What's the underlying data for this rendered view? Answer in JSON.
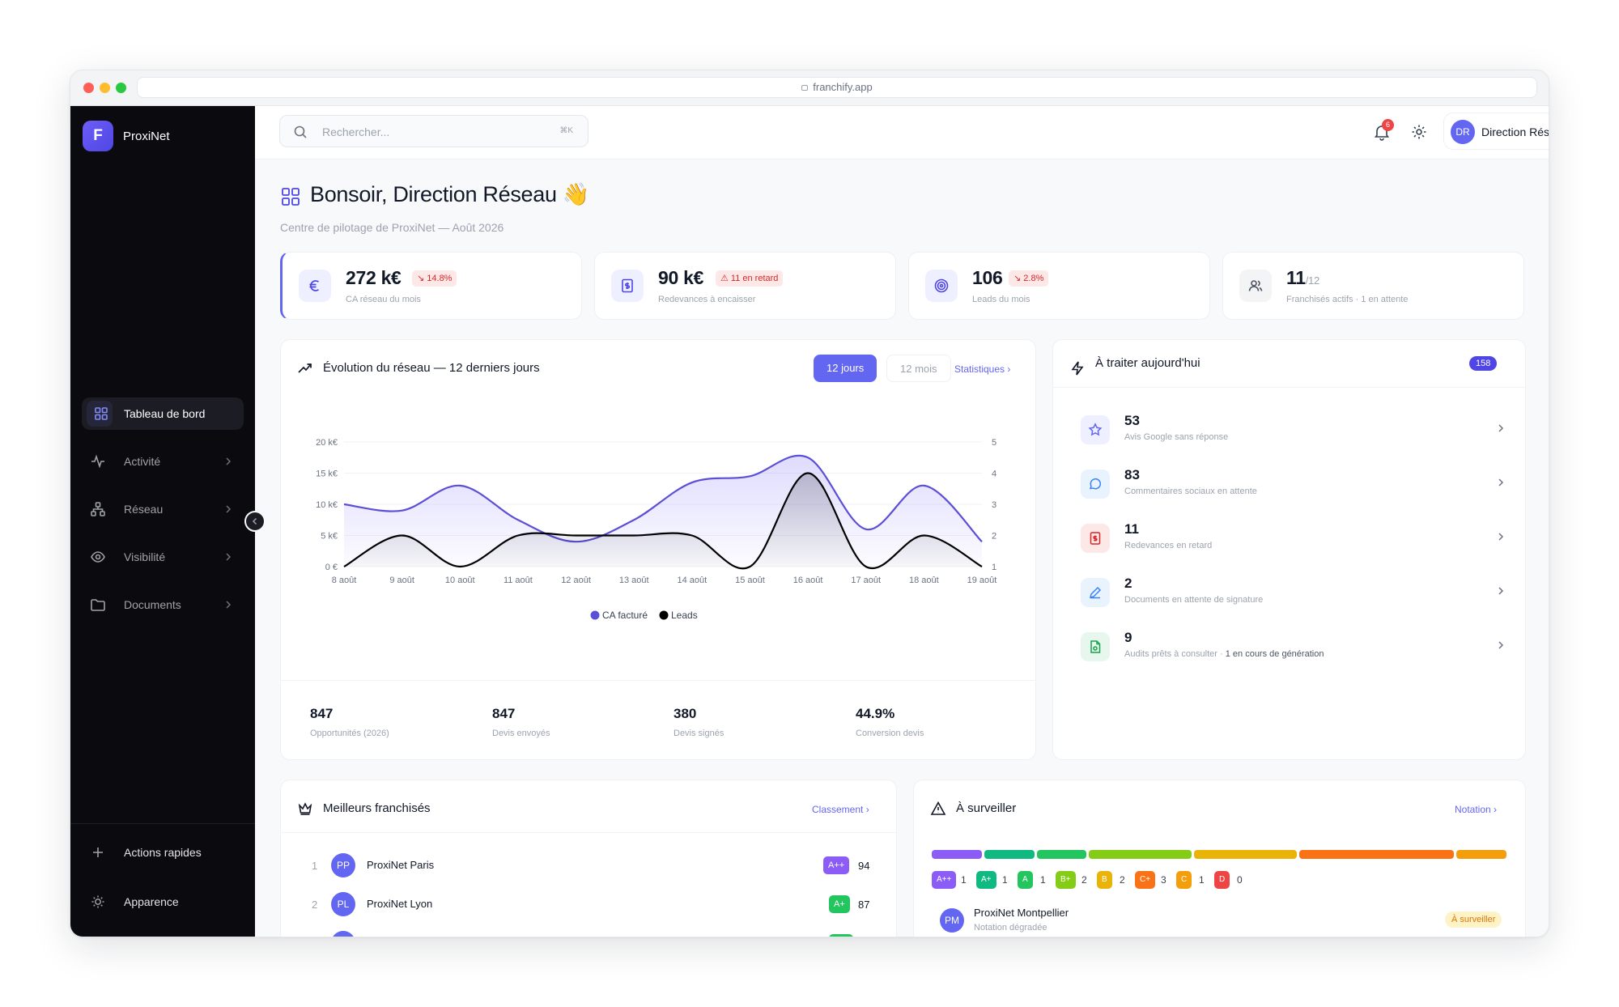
{
  "browser": {
    "url": "franchify.app"
  },
  "sidebar": {
    "brand_letter": "F",
    "brand_name": "ProxiNet",
    "items": [
      {
        "label": "Tableau de bord",
        "icon": "dashboard-icon",
        "active": true
      },
      {
        "label": "Activité",
        "icon": "activity-icon"
      },
      {
        "label": "Réseau",
        "icon": "network-icon"
      },
      {
        "label": "Visibilité",
        "icon": "eye-icon"
      },
      {
        "label": "Documents",
        "icon": "folder-icon"
      }
    ],
    "bottom": [
      {
        "label": "Actions rapides",
        "icon": "plus-icon"
      },
      {
        "label": "Apparence",
        "icon": "sun-icon"
      }
    ]
  },
  "topbar": {
    "search_placeholder": "Rechercher...",
    "search_shortcut": "⌘K",
    "notifications_count": "6",
    "user_initials": "DR",
    "user_name": "Direction Réseau"
  },
  "header": {
    "title": "Bonsoir, Direction Réseau 👋",
    "subtitle": "Centre de pilotage de ProxiNet — Août 2026"
  },
  "kpis": [
    {
      "value": "272 k€",
      "badge": "↘ 14.8%",
      "label": "CA réseau du mois",
      "icon": "euro-icon"
    },
    {
      "value": "90 k€",
      "badge": "⚠ 11 en retard",
      "label": "Redevances à encaisser",
      "icon": "invoice-icon"
    },
    {
      "value": "106",
      "badge": "↘ 2.8%",
      "label": "Leads du mois",
      "icon": "target-icon"
    },
    {
      "value": "11",
      "value_suffix": "/12",
      "label": "Franchisés actifs · 1 en attente",
      "icon": "users-icon"
    }
  ],
  "evolution": {
    "title": "Évolution du réseau — 12 derniers jours",
    "tabs": [
      "12 jours",
      "12 mois"
    ],
    "stats_link": "Statistiques ›",
    "stats": [
      {
        "value": "847",
        "label": "Opportunités (2026)"
      },
      {
        "value": "847",
        "label": "Devis envoyés"
      },
      {
        "value": "380",
        "label": "Devis signés"
      },
      {
        "value": "44.9%",
        "label": "Conversion devis"
      }
    ]
  },
  "chart_data": {
    "type": "area",
    "x": [
      "8 août",
      "9 août",
      "10 août",
      "11 août",
      "12 août",
      "13 août",
      "14 août",
      "15 août",
      "16 août",
      "17 août",
      "18 août",
      "19 août"
    ],
    "series": [
      {
        "name": "CA facturé",
        "axis": "left",
        "color": "#5b4fd6",
        "values": [
          10000,
          9000,
          13000,
          7500,
          4000,
          7500,
          13500,
          14500,
          17500,
          6000,
          13000,
          4000
        ]
      },
      {
        "name": "Leads",
        "axis": "right",
        "color": "#000000",
        "values": [
          1,
          2,
          1,
          2,
          2,
          2,
          2,
          1,
          4,
          1,
          2,
          1
        ]
      }
    ],
    "yleft_ticks": [
      "0 €",
      "5 k€",
      "10 k€",
      "15 k€",
      "20 k€"
    ],
    "yleft_lim": [
      0,
      20000
    ],
    "yright_ticks": [
      "1",
      "2",
      "3",
      "4",
      "5"
    ],
    "yright_lim": [
      1,
      5
    ],
    "legend_position": "bottom",
    "grid": true
  },
  "todo": {
    "title": "À traiter aujourd'hui",
    "total": "158",
    "items": [
      {
        "value": "53",
        "label": "Avis Google sans réponse",
        "icon": "star-icon",
        "bg": "#eef0ff",
        "fg": "#6366f1"
      },
      {
        "value": "83",
        "label": "Commentaires sociaux en attente",
        "icon": "comment-icon",
        "bg": "#e8f3fe",
        "fg": "#3b82f6"
      },
      {
        "value": "11",
        "label": "Redevances en retard",
        "icon": "invoice-icon",
        "bg": "#fde8e8",
        "fg": "#dc2626"
      },
      {
        "value": "2",
        "label": "Documents en attente de signature",
        "icon": "pen-icon",
        "bg": "#e8f3fe",
        "fg": "#3b82f6"
      },
      {
        "value": "9",
        "label": "Audits prêts à consulter · ",
        "label_extra": "1 en cours de génération",
        "icon": "document-icon",
        "bg": "#e7f7ee",
        "fg": "#16a34a"
      }
    ]
  },
  "best": {
    "title": "Meilleurs franchisés",
    "link": "Classement ›",
    "rows": [
      {
        "rank": "1",
        "initials": "PP",
        "name": "ProxiNet Paris",
        "grade": "A++",
        "grade_color": "#8b5cf6",
        "score": "94"
      },
      {
        "rank": "2",
        "initials": "PL",
        "name": "ProxiNet Lyon",
        "grade": "A+",
        "grade_color": "#22c55e",
        "score": "87"
      }
    ]
  },
  "watch": {
    "title": "À surveiller",
    "link": "Notation ›",
    "grades": [
      {
        "grade": "A++",
        "count": "1",
        "color": "#8b5cf6"
      },
      {
        "grade": "A+",
        "count": "1",
        "color": "#10b981"
      },
      {
        "grade": "A",
        "count": "1",
        "color": "#22c55e"
      },
      {
        "grade": "B+",
        "count": "2",
        "color": "#84cc16"
      },
      {
        "grade": "B",
        "count": "2",
        "color": "#eab308"
      },
      {
        "grade": "C+",
        "count": "3",
        "color": "#f97316"
      },
      {
        "grade": "C",
        "count": "1",
        "color": "#f59e0b"
      },
      {
        "grade": "D",
        "count": "0",
        "color": "#ef4444"
      }
    ],
    "item": {
      "initials": "PM",
      "name": "ProxiNet Montpellier",
      "sub": "Notation dégradée",
      "badge": "À surveiller"
    }
  }
}
